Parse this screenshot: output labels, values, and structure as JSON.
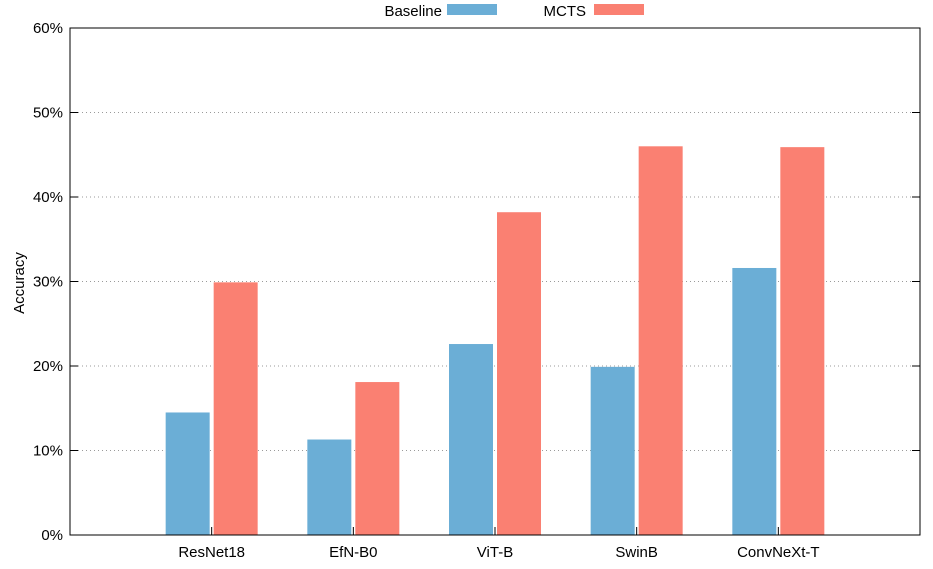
{
  "chart_data": {
    "type": "bar",
    "ylabel": "Accuracy",
    "categories": [
      "ResNet18",
      "EfN-B0",
      "ViT-B",
      "SwinB",
      "ConvNeXt-T"
    ],
    "series": [
      {
        "name": "Baseline",
        "color": "#6baed6",
        "values": [
          14.5,
          11.3,
          22.6,
          19.9,
          31.6
        ]
      },
      {
        "name": "MCTS",
        "color": "#fa8072",
        "values": [
          29.9,
          18.1,
          38.2,
          46.0,
          45.9
        ]
      }
    ],
    "ylim": [
      0,
      60
    ],
    "yticks": [
      "0%",
      "10%",
      "20%",
      "30%",
      "40%",
      "50%",
      "60%"
    ],
    "grid": "horizontal dotted",
    "legend_position": "top-center"
  }
}
